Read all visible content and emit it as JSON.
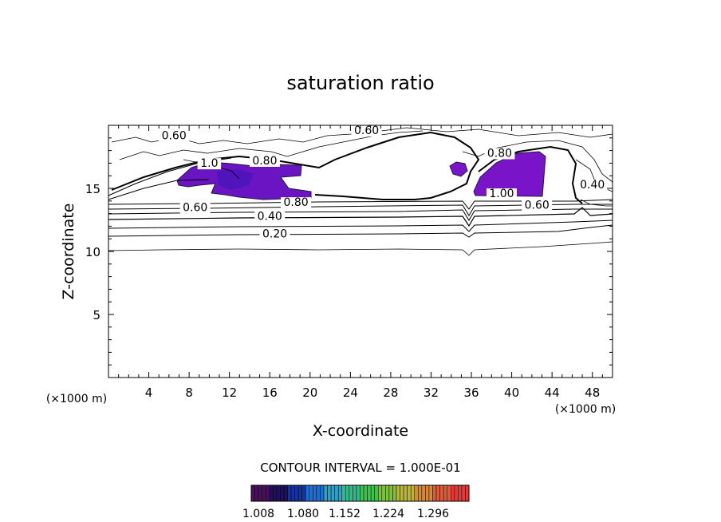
{
  "chart_data": {
    "type": "contour",
    "title": "saturation ratio",
    "xlabel": "X-coordinate",
    "ylabel": "Z-coordinate",
    "x_unit_left": "(×1000 m)",
    "x_unit_right": "(×1000 m)",
    "xlim": [
      0,
      50
    ],
    "ylim": [
      0,
      20
    ],
    "x_ticks": [
      "4",
      "8",
      "12",
      "16",
      "20",
      "24",
      "28",
      "32",
      "36",
      "40",
      "44",
      "48"
    ],
    "x_tick_values": [
      4,
      8,
      12,
      16,
      20,
      24,
      28,
      32,
      36,
      40,
      44,
      48
    ],
    "y_ticks": [
      "5",
      "10",
      "15"
    ],
    "y_tick_values": [
      5,
      10,
      15
    ],
    "contour_interval_text": "CONTOUR INTERVAL = 1.000E-01",
    "contour_labels": [
      {
        "text": "0.60",
        "x": 6.5,
        "y": 18.9
      },
      {
        "text": "0.60",
        "x": 25.6,
        "y": 19.3
      },
      {
        "text": "0.80",
        "x": 15.5,
        "y": 16.9
      },
      {
        "text": "0.80",
        "x": 38.8,
        "y": 17.5
      },
      {
        "text": "1.00",
        "x": 39.0,
        "y": 14.3
      },
      {
        "text": "0.80",
        "x": 18.6,
        "y": 13.6
      },
      {
        "text": "0.60",
        "x": 8.6,
        "y": 13.2
      },
      {
        "text": "0.60",
        "x": 42.5,
        "y": 13.4
      },
      {
        "text": "0.40",
        "x": 16.0,
        "y": 12.5
      },
      {
        "text": "0.40",
        "x": 48.0,
        "y": 15.0
      },
      {
        "text": "0.20",
        "x": 16.5,
        "y": 11.1
      },
      {
        "text": "1.0",
        "x": 10.0,
        "y": 16.7
      }
    ],
    "colorbar": {
      "ticks": [
        "1.008",
        "1.080",
        "1.152",
        "1.224",
        "1.296"
      ],
      "min": 1.008,
      "max": 1.32,
      "colors": [
        "#4b0f5e",
        "#20105c",
        "#1433a0",
        "#1f6fd0",
        "#2fa0c8",
        "#35b98a",
        "#3fc24b",
        "#7cc23a",
        "#b7b53a",
        "#d58a3a",
        "#e05a3a",
        "#e03a3a"
      ]
    },
    "fill_color": "#7a14c8"
  }
}
